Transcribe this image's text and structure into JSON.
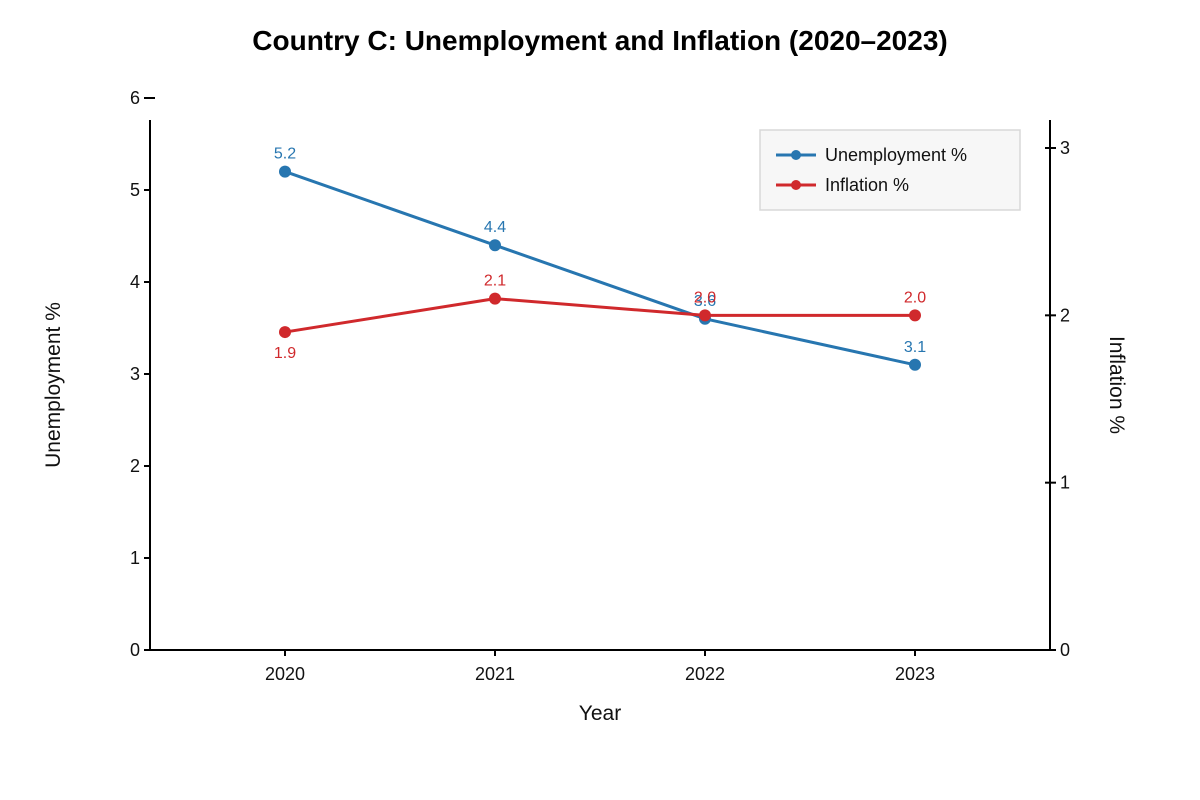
{
  "chart_data": {
    "type": "line",
    "title": "Country C: Unemployment and Inflation (2020–2023)",
    "xlabel": "Year",
    "ylabel_left": "Unemployment %",
    "ylabel_right": "Inflation %",
    "categories": [
      "2020",
      "2021",
      "2022",
      "2023"
    ],
    "ylim_left": [
      0,
      6
    ],
    "ylim_right": [
      0,
      3.2
    ],
    "yticks_left": [
      "0",
      "1",
      "2",
      "3",
      "4",
      "5",
      "6"
    ],
    "yticks_right": [
      "0",
      "1",
      "2",
      "3"
    ],
    "grid": false,
    "legend_position": "top-right",
    "series": [
      {
        "name": "Unemployment %",
        "axis": "left",
        "color": "#2776b0",
        "values": [
          5.2,
          4.4,
          3.6,
          3.1
        ],
        "labels": [
          "5.2",
          "4.4",
          "3.6",
          "3.1"
        ]
      },
      {
        "name": "Inflation %",
        "axis": "right",
        "color": "#d0292c",
        "values": [
          1.9,
          2.1,
          2.0,
          2.0
        ],
        "labels": [
          "1.9",
          "2.1",
          "2.0",
          "2.0"
        ]
      }
    ]
  }
}
